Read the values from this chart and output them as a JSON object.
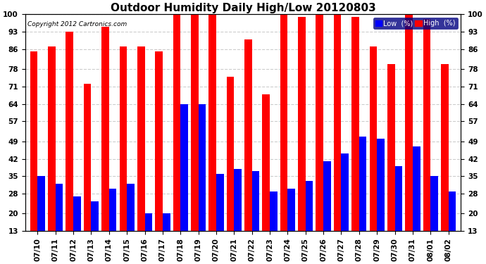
{
  "title": "Outdoor Humidity Daily High/Low 20120803",
  "copyright": "Copyright 2012 Cartronics.com",
  "dates": [
    "07/10",
    "07/11",
    "07/12",
    "07/13",
    "07/14",
    "07/15",
    "07/16",
    "07/17",
    "07/18",
    "07/19",
    "07/20",
    "07/21",
    "07/22",
    "07/23",
    "07/24",
    "07/25",
    "07/26",
    "07/27",
    "07/28",
    "07/29",
    "07/30",
    "07/31",
    "08/01",
    "08/02"
  ],
  "high": [
    85,
    87,
    93,
    72,
    95,
    87,
    87,
    85,
    100,
    100,
    100,
    75,
    90,
    68,
    100,
    99,
    100,
    100,
    99,
    87,
    80,
    100,
    98,
    80
  ],
  "low": [
    35,
    32,
    27,
    25,
    30,
    32,
    20,
    20,
    64,
    64,
    36,
    38,
    37,
    29,
    30,
    33,
    41,
    44,
    51,
    50,
    39,
    47,
    35,
    29
  ],
  "yticks": [
    13,
    20,
    28,
    35,
    42,
    49,
    57,
    64,
    71,
    78,
    86,
    93,
    100
  ],
  "ymin": 13,
  "ymax": 100,
  "bar_width": 0.42,
  "high_color": "#ff0000",
  "low_color": "#0000ff",
  "background_color": "#ffffff",
  "grid_color": "#cccccc",
  "title_fontsize": 11,
  "tick_fontsize": 7.5,
  "legend_low_label": "Low  (%)",
  "legend_high_label": "High  (%)"
}
